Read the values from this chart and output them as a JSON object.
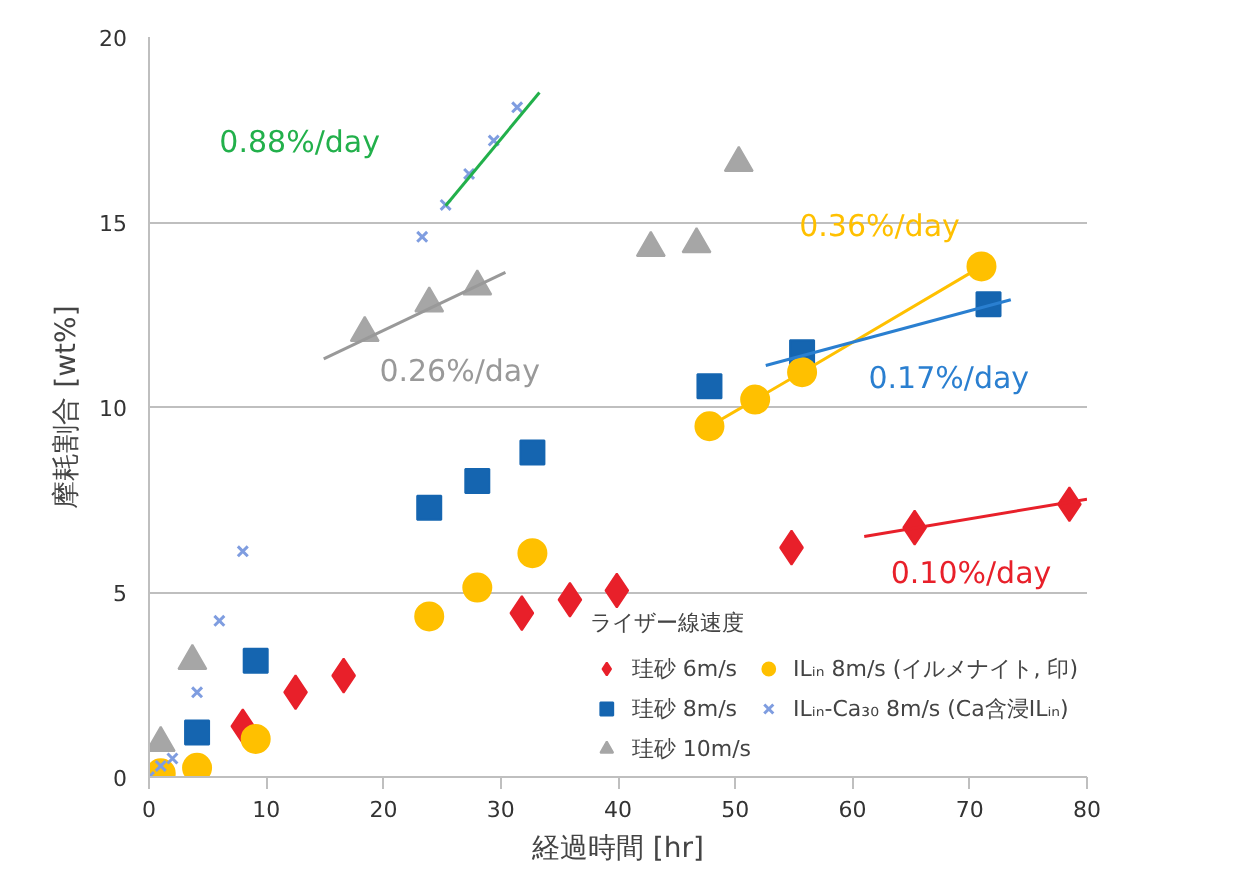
{
  "chart_data": {
    "type": "scatter",
    "xlabel": "経過時間 [hr]",
    "ylabel": "摩耗割合 [wt%]",
    "legend_title": "ライザー線速度",
    "legend": "bottom right",
    "grid": "y",
    "xlim": [
      0,
      80
    ],
    "ylim": [
      0,
      20
    ],
    "xticks": [
      0,
      10,
      20,
      30,
      40,
      50,
      60,
      70,
      80
    ],
    "yticks": [
      0,
      5,
      10,
      15,
      20
    ],
    "series": [
      {
        "name": "珪砂 6m/s",
        "color": "#e8202a",
        "marker": "diamond",
        "x": [
          8,
          12.5,
          16.6,
          31.8,
          35.9,
          39.9,
          54.8,
          65.3,
          78.5
        ],
        "values": [
          1.37,
          2.29,
          2.74,
          4.43,
          4.79,
          5.04,
          6.2,
          6.74,
          7.37
        ]
      },
      {
        "name": "珪砂 8m/s",
        "color": "#1565b0",
        "marker": "square",
        "x": [
          4.1,
          9.1,
          23.9,
          28,
          32.7,
          47.8,
          55.7,
          71.6
        ],
        "values": [
          1.2,
          3.14,
          7.28,
          8,
          8.77,
          10.56,
          11.48,
          12.78
        ]
      },
      {
        "name": "珪砂 10m/s",
        "color": "#a6a6a6",
        "marker": "triangle",
        "x": [
          1,
          3.7,
          18.4,
          23.9,
          28,
          42.8,
          46.7,
          50.3
        ],
        "values": [
          0.92,
          3.14,
          12,
          12.8,
          13.26,
          14.3,
          14.4,
          16.6
        ]
      },
      {
        "name": "ILᵢₙ 8m/s (イルメナイト, 印)",
        "color": "#ffc000",
        "marker": "circle",
        "x": [
          1,
          4.1,
          9.1,
          23.9,
          28,
          32.7,
          47.8,
          51.7,
          55.7,
          71
        ],
        "values": [
          0.1,
          0.25,
          1.03,
          4.34,
          5.12,
          6.05,
          9.48,
          10.2,
          10.94,
          13.8
        ]
      },
      {
        "name": "ILᵢₙ-Ca₃₀ 8m/s (Ca含浸ILᵢₙ)",
        "color": "#7f9de0",
        "marker": "cross",
        "x": [
          0,
          1,
          2,
          4.1,
          6,
          8,
          23.3,
          25.3,
          27.3,
          29.4,
          31.4
        ],
        "values": [
          0,
          0.3,
          0.5,
          2.29,
          4.22,
          6.1,
          14.6,
          15.46,
          16.3,
          17.2,
          18.1
        ]
      },
      {
        "name": "0.88%/day",
        "type": "line",
        "color": "#22b04b",
        "x": [
          25.3,
          33.3
        ],
        "values": [
          15.44,
          18.5
        ]
      },
      {
        "name": "0.26%/day",
        "type": "line",
        "color": "#999999",
        "x": [
          14.9,
          30.4
        ],
        "values": [
          11.3,
          13.64
        ]
      },
      {
        "name": "0.36%/day",
        "type": "line",
        "color": "#ffc000",
        "x": [
          47.8,
          51.7,
          55.7,
          71
        ],
        "values": [
          9.48,
          10.2,
          10.94,
          13.8
        ]
      },
      {
        "name": "0.17%/day",
        "type": "line",
        "color": "#2a7fd0",
        "x": [
          52.6,
          73.5
        ],
        "values": [
          11.12,
          12.9
        ]
      },
      {
        "name": "0.10%/day",
        "type": "line",
        "color": "#e8202a",
        "x": [
          61,
          80
        ],
        "values": [
          6.5,
          7.51
        ]
      }
    ]
  }
}
